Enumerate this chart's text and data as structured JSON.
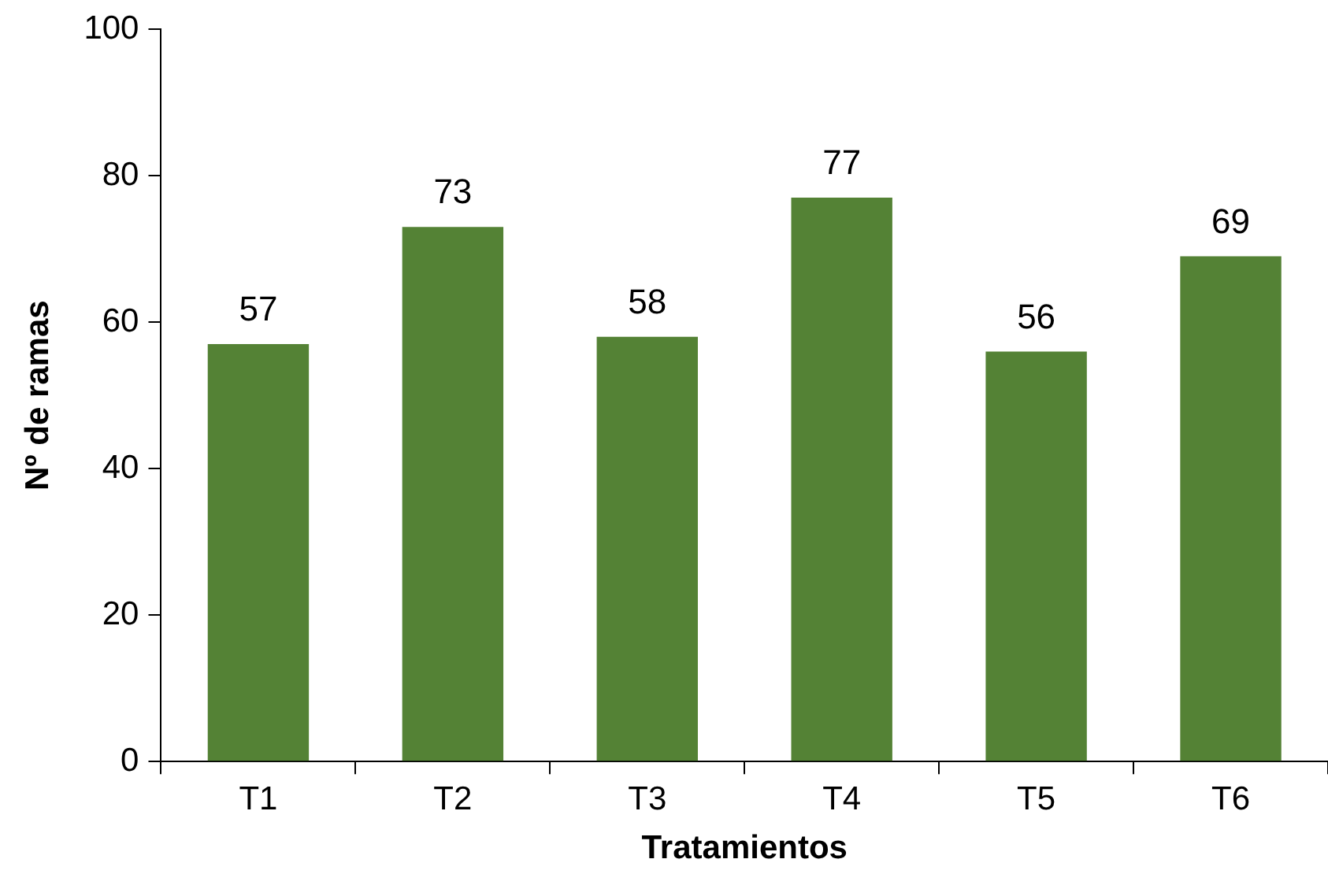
{
  "chart_data": {
    "type": "bar",
    "xlabel": "Tratamientos",
    "ylabel": "Nº de ramas",
    "categories": [
      "T1",
      "T2",
      "T3",
      "T4",
      "T5",
      "T6"
    ],
    "values": [
      57,
      73,
      58,
      77,
      56,
      69
    ],
    "color": "#548235",
    "ylim": [
      0,
      100
    ],
    "yticks": [
      0,
      20,
      40,
      60,
      80,
      100
    ],
    "grid": false,
    "data_labels": true
  }
}
